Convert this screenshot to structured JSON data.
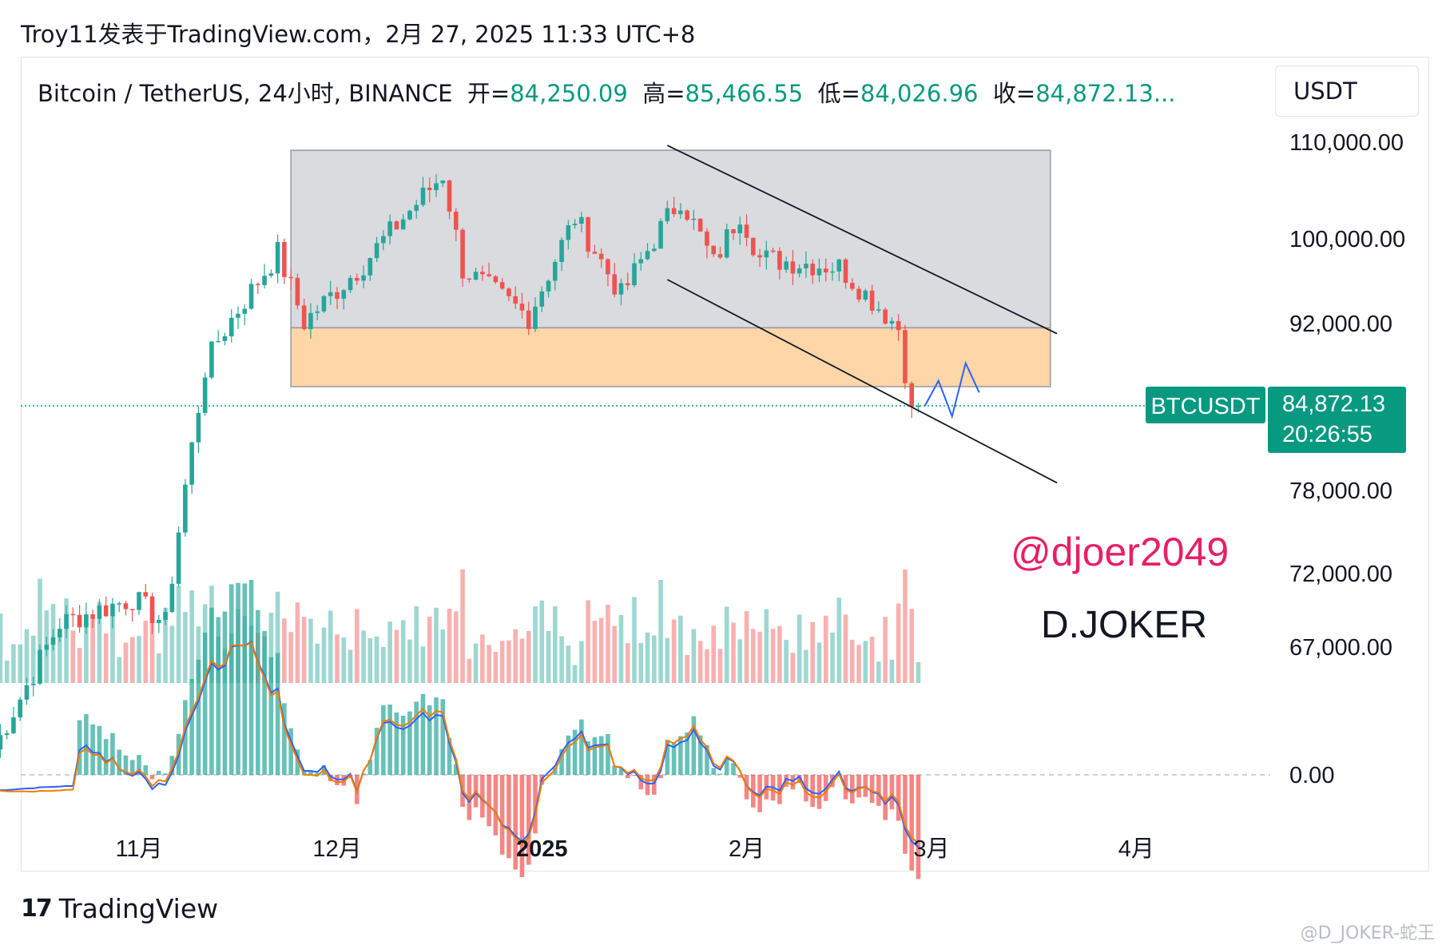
{
  "header": {
    "title": "Troy11发表于TradingView.com，2月 27, 2025 11:33 UTC+8"
  },
  "legend": {
    "symbol": "Bitcoin / TetherUS, 24小时, BINANCE",
    "open_label": "开=",
    "open": "84,250.09",
    "high_label": "高=",
    "high": "85,466.55",
    "low_label": "低=",
    "low": "84,026.96",
    "close_label": "收=",
    "close": "84,872.13..."
  },
  "unit": "USDT",
  "price_tag": {
    "symbol": "BTCUSDT",
    "price": "84,872.13",
    "countdown": "20:26:55"
  },
  "watermark": {
    "handle": "@djoer2049",
    "name": "D.JOKER"
  },
  "footer": {
    "brand": "TradingView",
    "credit": "@D_JOKER-蛇王"
  },
  "colors": {
    "up": "#26a69a",
    "down": "#ef5350",
    "accent": "#089981",
    "box_gray": "#d5d7dc",
    "box_orange": "#ffcf99",
    "macd": "#2962ff",
    "signal": "#f57c00",
    "handle": "#e91e63"
  },
  "chart_data": {
    "type": "candlestick",
    "y_ticks": [
      110000,
      100000,
      92000,
      78000,
      72000,
      67000
    ],
    "y_tick_labels": [
      "110,000.00",
      "100,000.00",
      "92,000.00",
      "78,000.00",
      "72,000.00",
      "67,000.00"
    ],
    "x_ticks": [
      "11月",
      "12月",
      "2025",
      "2月",
      "3月",
      "4月"
    ],
    "current_price": 84872.13,
    "close_series_approx": [
      {
        "date": "2024-10-10",
        "close": 60500
      },
      {
        "date": "2024-10-20",
        "close": 68500
      },
      {
        "date": "2024-10-31",
        "close": 70200
      },
      {
        "date": "2024-11-05",
        "close": 68500
      },
      {
        "date": "2024-11-11",
        "close": 88000
      },
      {
        "date": "2024-11-13",
        "close": 90500
      },
      {
        "date": "2024-11-22",
        "close": 98500
      },
      {
        "date": "2024-11-26",
        "close": 92000
      },
      {
        "date": "2024-12-05",
        "close": 97500
      },
      {
        "date": "2024-12-17",
        "close": 106500
      },
      {
        "date": "2024-12-20",
        "close": 97000
      },
      {
        "date": "2024-12-30",
        "close": 92500
      },
      {
        "date": "2025-01-06",
        "close": 102000
      },
      {
        "date": "2025-01-13",
        "close": 94500
      },
      {
        "date": "2025-01-20",
        "close": 102000
      },
      {
        "date": "2025-01-22",
        "close": 104000
      },
      {
        "date": "2025-01-27",
        "close": 97500
      },
      {
        "date": "2025-01-31",
        "close": 102500
      },
      {
        "date": "2025-02-03",
        "close": 98000
      },
      {
        "date": "2025-02-15",
        "close": 97200
      },
      {
        "date": "2025-02-24",
        "close": 91500
      },
      {
        "date": "2025-02-26",
        "close": 84250
      },
      {
        "date": "2025-02-27",
        "close": 84872
      }
    ],
    "resistance_range_gray": [
      91500,
      109000
    ],
    "support_range_orange": [
      86500,
      91500
    ],
    "channel": {
      "upper": [
        [
          "2025-01-20",
          109500
        ],
        [
          "2025-03-20",
          91000
        ]
      ],
      "lower": [
        [
          "2025-01-20",
          96000
        ],
        [
          "2025-03-20",
          78500
        ]
      ]
    },
    "projection_path": [
      84872,
      87000,
      84000,
      88500,
      86000
    ],
    "volume_panel": true,
    "macd": {
      "zero_label": "0.00"
    }
  }
}
